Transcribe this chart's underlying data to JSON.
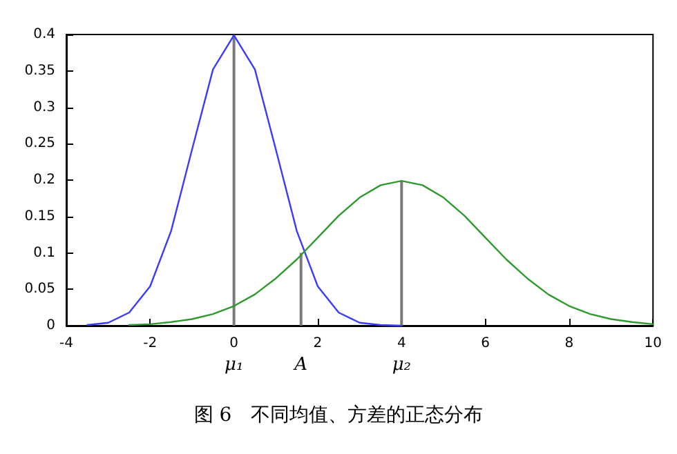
{
  "chart_data": {
    "type": "line",
    "xlim": [
      -4,
      10
    ],
    "xticks": [
      -4,
      -2,
      0,
      2,
      4,
      6,
      8,
      10
    ],
    "ylim": [
      0,
      0.4
    ],
    "yticks": [
      0,
      0.05,
      0.1,
      0.15,
      0.2,
      0.25,
      0.3,
      0.35,
      0.4
    ],
    "grid": false,
    "marker": "none",
    "line_style": "solid",
    "series": [
      {
        "color": "#3a3aff",
        "x": [
          -3.5,
          -3,
          -2.5,
          -2,
          -1.5,
          -1,
          -0.5,
          0,
          0.5,
          1,
          1.5,
          2,
          2.5,
          3,
          3.5,
          4
        ],
        "values": [
          0.001,
          0.004,
          0.018,
          0.054,
          0.13,
          0.242,
          0.352,
          0.399,
          0.352,
          0.242,
          0.13,
          0.054,
          0.018,
          0.004,
          0.001,
          0
        ]
      },
      {
        "type": "bar",
        "color": "#7a7a7a",
        "x": [
          0,
          1.6,
          4
        ],
        "values": [
          0.399,
          0.1,
          0.199
        ]
      },
      {
        "color": "#2e9a2e",
        "x": [
          -2.5,
          -2,
          -1.5,
          -1,
          -0.5,
          0,
          0.5,
          1,
          1.5,
          2,
          2.5,
          3,
          3.5,
          4,
          4.5,
          5,
          5.5,
          6,
          6.5,
          7,
          7.5,
          8,
          8.5,
          9,
          9.5,
          10
        ],
        "values": [
          0.001,
          0.002,
          0.005,
          0.009,
          0.016,
          0.027,
          0.043,
          0.065,
          0.091,
          0.121,
          0.151,
          0.176,
          0.193,
          0.199,
          0.193,
          0.176,
          0.151,
          0.121,
          0.091,
          0.065,
          0.043,
          0.027,
          0.016,
          0.009,
          0.005,
          0.002
        ]
      }
    ],
    "annotations": [
      {
        "text": "μ₁",
        "x": 0,
        "y": 0
      },
      {
        "text": "A",
        "x": 1.6,
        "y": 0
      },
      {
        "text": "μ₂",
        "x": 4,
        "y": 0
      },
      "图 6　不同均值、方差的正态分布"
    ]
  }
}
